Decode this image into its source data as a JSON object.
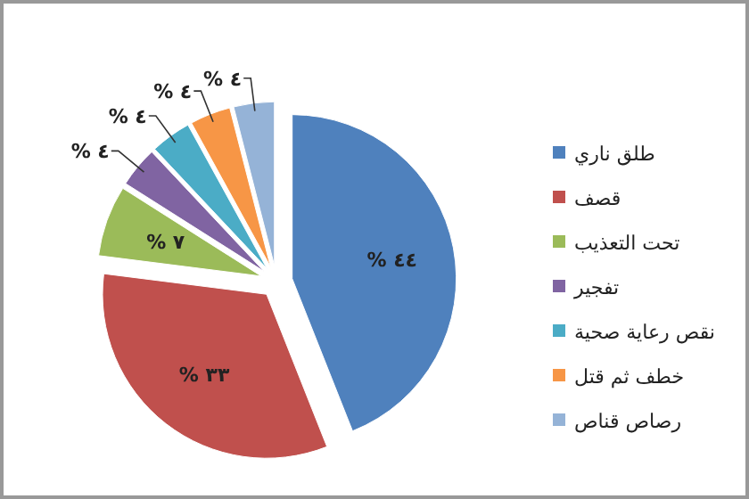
{
  "chart_data": {
    "type": "pie",
    "categories": [
      "طلق ناري",
      "قصف",
      "تحت التعذيب",
      "تفجير",
      "نقص رعاية صحية",
      "خطف ثم قتل",
      "رصاص قناص"
    ],
    "values": [
      44,
      33,
      7,
      4,
      4,
      4,
      4
    ],
    "colors": [
      "#4f81bd",
      "#c0504d",
      "#9bbb59",
      "#8064a2",
      "#4bacc6",
      "#f79646",
      "#95b3d7"
    ],
    "value_labels": [
      "% ٤٤",
      "% ٣٣",
      "% ٧",
      "% ٤",
      "% ٤",
      "% ٤",
      "% ٤"
    ],
    "legend": "right"
  }
}
